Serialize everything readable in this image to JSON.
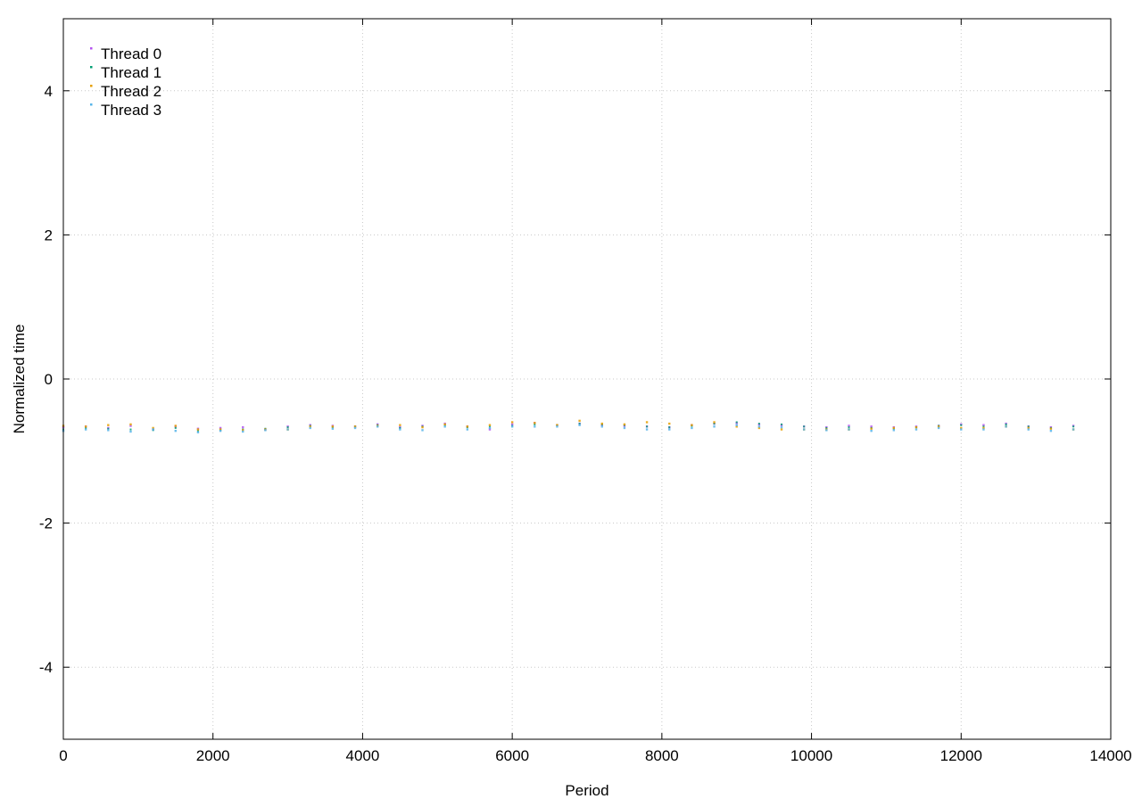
{
  "chart_data": {
    "type": "scatter",
    "title": "",
    "xlabel": "Period",
    "ylabel": "Normalized time",
    "xlim": [
      0,
      14000
    ],
    "ylim": [
      -5,
      5
    ],
    "x_ticks": [
      0,
      2000,
      4000,
      6000,
      8000,
      10000,
      12000,
      14000
    ],
    "y_ticks": [
      -4,
      -2,
      0,
      2,
      4
    ],
    "x_tick_labels": [
      "0",
      "2000",
      "4000",
      "6000",
      "8000",
      "10000",
      "12000",
      "14000"
    ],
    "y_tick_labels": [
      "-4",
      "-2",
      "0",
      "2",
      "4"
    ],
    "grid": true,
    "legend_position": "top-left",
    "series": [
      {
        "name": "Thread 0",
        "color": "#b452f0",
        "x": [
          0,
          300,
          600,
          900,
          1200,
          1500,
          1800,
          2100,
          2400,
          2700,
          3000,
          3300,
          3600,
          3900,
          4200,
          4500,
          4800,
          5100,
          5400,
          5700,
          6000,
          6300,
          6600,
          6900,
          7200,
          7500,
          7800,
          8100,
          8400,
          8700,
          9000,
          9300,
          9600,
          9900,
          10200,
          10500,
          10800,
          11100,
          11400,
          11700,
          12000,
          12300,
          12600,
          12900,
          13200,
          13500
        ],
        "y": [
          -0.67,
          -0.66,
          -0.68,
          -0.65,
          -0.7,
          -0.66,
          -0.69,
          -0.68,
          -0.67,
          -0.7,
          -0.66,
          -0.64,
          -0.65,
          -0.66,
          -0.63,
          -0.67,
          -0.65,
          -0.62,
          -0.66,
          -0.7,
          -0.63,
          -0.61,
          -0.64,
          -0.62,
          -0.64,
          -0.65,
          -0.66,
          -0.67,
          -0.64,
          -0.62,
          -0.61,
          -0.63,
          -0.64,
          -0.66,
          -0.67,
          -0.65,
          -0.66,
          -0.67,
          -0.66,
          -0.65,
          -0.63,
          -0.64,
          -0.62,
          -0.66,
          -0.67,
          -0.65
        ]
      },
      {
        "name": "Thread 1",
        "color": "#009e73",
        "x": [
          0,
          300,
          600,
          900,
          1200,
          1500,
          1800,
          2100,
          2400,
          2700,
          3000,
          3300,
          3600,
          3900,
          4200,
          4500,
          4800,
          5100,
          5400,
          5700,
          6000,
          6300,
          6600,
          6900,
          7200,
          7500,
          7800,
          8100,
          8400,
          8700,
          9000,
          9300,
          9600,
          9900,
          10200,
          10500,
          10800,
          11100,
          11400,
          11700,
          12000,
          12300,
          12600,
          12900,
          13200,
          13500
        ],
        "y": [
          -0.7,
          -0.68,
          -0.69,
          -0.7,
          -0.71,
          -0.68,
          -0.72,
          -0.71,
          -0.7,
          -0.69,
          -0.67,
          -0.65,
          -0.67,
          -0.66,
          -0.64,
          -0.68,
          -0.66,
          -0.64,
          -0.67,
          -0.66,
          -0.65,
          -0.63,
          -0.64,
          -0.62,
          -0.63,
          -0.64,
          -0.66,
          -0.67,
          -0.65,
          -0.62,
          -0.6,
          -0.62,
          -0.63,
          -0.66,
          -0.68,
          -0.67,
          -0.68,
          -0.69,
          -0.67,
          -0.65,
          -0.64,
          -0.66,
          -0.63,
          -0.66,
          -0.68,
          -0.66
        ]
      },
      {
        "name": "Thread 2",
        "color": "#e69f00",
        "x": [
          0,
          300,
          600,
          900,
          1200,
          1500,
          1800,
          2100,
          2400,
          2700,
          3000,
          3300,
          3600,
          3900,
          4200,
          4500,
          4800,
          5100,
          5400,
          5700,
          6000,
          6300,
          6600,
          6900,
          7200,
          7500,
          7800,
          8100,
          8400,
          8700,
          9000,
          9300,
          9600,
          9900,
          10200,
          10500,
          10800,
          11100,
          11400,
          11700,
          12000,
          12300,
          12600,
          12900,
          13200,
          13500
        ],
        "y": [
          -0.65,
          -0.66,
          -0.64,
          -0.63,
          -0.68,
          -0.65,
          -0.7,
          -0.7,
          -0.71,
          -0.7,
          -0.7,
          -0.66,
          -0.66,
          -0.66,
          -0.65,
          -0.64,
          -0.67,
          -0.63,
          -0.66,
          -0.64,
          -0.6,
          -0.61,
          -0.64,
          -0.58,
          -0.62,
          -0.63,
          -0.6,
          -0.62,
          -0.64,
          -0.6,
          -0.66,
          -0.68,
          -0.7,
          -0.7,
          -0.7,
          -0.7,
          -0.69,
          -0.68,
          -0.67,
          -0.66,
          -0.68,
          -0.68,
          -0.66,
          -0.68,
          -0.69,
          -0.7
        ]
      },
      {
        "name": "Thread 3",
        "color": "#56b4e9",
        "x": [
          0,
          300,
          600,
          900,
          1200,
          1500,
          1800,
          2100,
          2400,
          2700,
          3000,
          3300,
          3600,
          3900,
          4200,
          4500,
          4800,
          5100,
          5400,
          5700,
          6000,
          6300,
          6600,
          6900,
          7200,
          7500,
          7800,
          8100,
          8400,
          8700,
          9000,
          9300,
          9600,
          9900,
          10200,
          10500,
          10800,
          11100,
          11400,
          11700,
          12000,
          12300,
          12600,
          12900,
          13200,
          13500
        ],
        "y": [
          -0.72,
          -0.7,
          -0.71,
          -0.73,
          -0.7,
          -0.72,
          -0.74,
          -0.72,
          -0.73,
          -0.71,
          -0.7,
          -0.68,
          -0.69,
          -0.68,
          -0.66,
          -0.7,
          -0.71,
          -0.66,
          -0.7,
          -0.68,
          -0.66,
          -0.66,
          -0.66,
          -0.64,
          -0.66,
          -0.68,
          -0.7,
          -0.7,
          -0.68,
          -0.66,
          -0.64,
          -0.66,
          -0.67,
          -0.7,
          -0.71,
          -0.7,
          -0.72,
          -0.71,
          -0.7,
          -0.68,
          -0.7,
          -0.7,
          -0.66,
          -0.7,
          -0.72,
          -0.7
        ]
      }
    ]
  }
}
